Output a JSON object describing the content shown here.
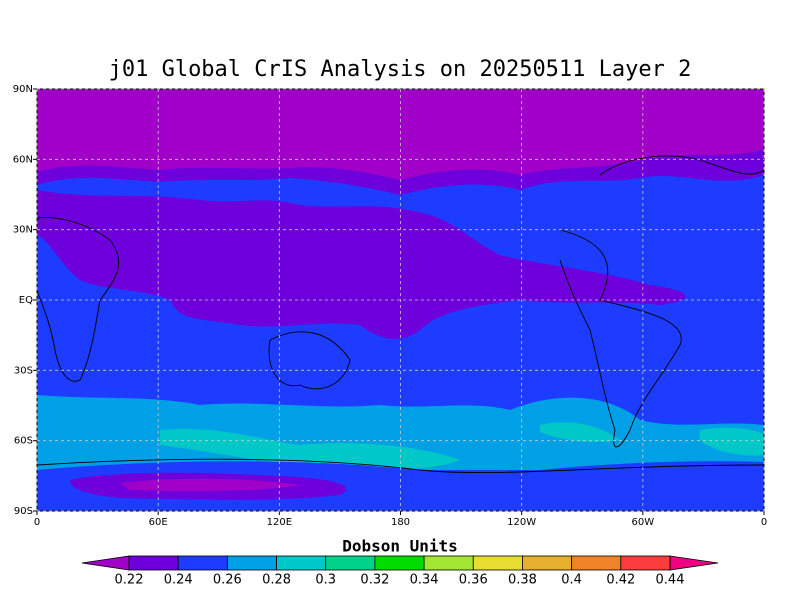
{
  "chart_data": {
    "type": "map",
    "title": "j01 Global CrIS Analysis on 20250511 Layer 2",
    "xlim": [
      0,
      360
    ],
    "ylim": [
      -90,
      90
    ],
    "xticks": [
      0,
      {
        "value": 60,
        "label": "60E"
      },
      {
        "value": 120,
        "label": "120E"
      },
      180,
      {
        "value": 240,
        "label": "120W"
      },
      {
        "value": 300,
        "label": "60W"
      },
      {
        "value": 360,
        "label": "0"
      }
    ],
    "yticks": [
      {
        "value": -90,
        "label": "90S"
      },
      {
        "value": -60,
        "label": "60S"
      },
      {
        "value": -30,
        "label": "30S"
      },
      {
        "value": 0,
        "label": "EQ"
      },
      {
        "value": 30,
        "label": "30N"
      },
      {
        "value": 60,
        "label": "60N"
      },
      {
        "value": 90,
        "label": "90N"
      }
    ],
    "grid": true,
    "colorbar": {
      "label": "Dobson Units",
      "levels": [
        0.22,
        0.24,
        0.26,
        0.28,
        0.3,
        0.32,
        0.34,
        0.36,
        0.38,
        0.4,
        0.42,
        0.44
      ],
      "colors": [
        "#a000c8",
        "#6e00dc",
        "#1e3cff",
        "#00a0e6",
        "#00c8c8",
        "#00d28c",
        "#00dc00",
        "#a0e632",
        "#e6dc32",
        "#e6af2d",
        "#f08228",
        "#fa3c3c",
        "#f00082"
      ]
    }
  }
}
